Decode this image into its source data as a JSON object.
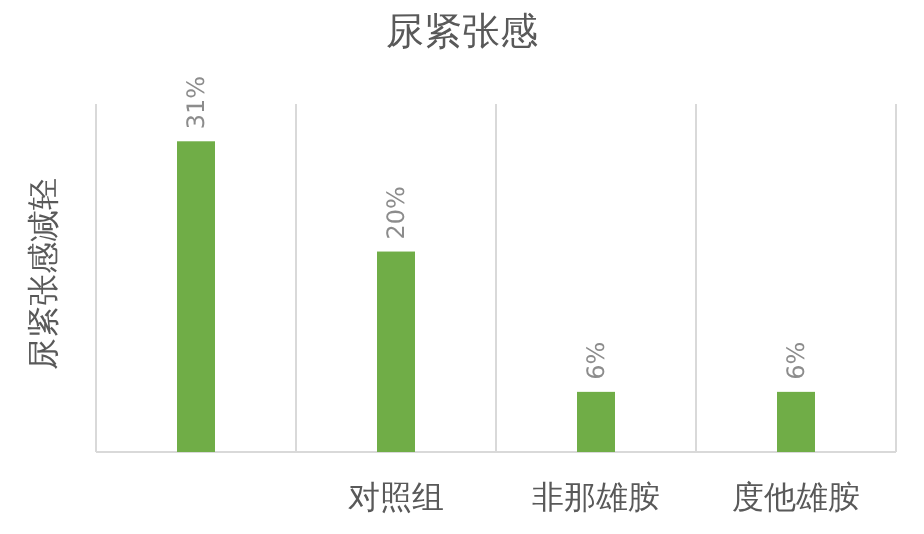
{
  "chart_data": {
    "type": "bar",
    "title": "尿紧张感",
    "ylabel": "尿紧张感减轻",
    "categories": [
      null,
      "对照组",
      "非那雄胺",
      "度他雄胺"
    ],
    "values": [
      31,
      20,
      6,
      6
    ],
    "value_labels": [
      "31%",
      "20%",
      "6%",
      "6%"
    ],
    "color": "#70ad47",
    "grid": "x"
  }
}
